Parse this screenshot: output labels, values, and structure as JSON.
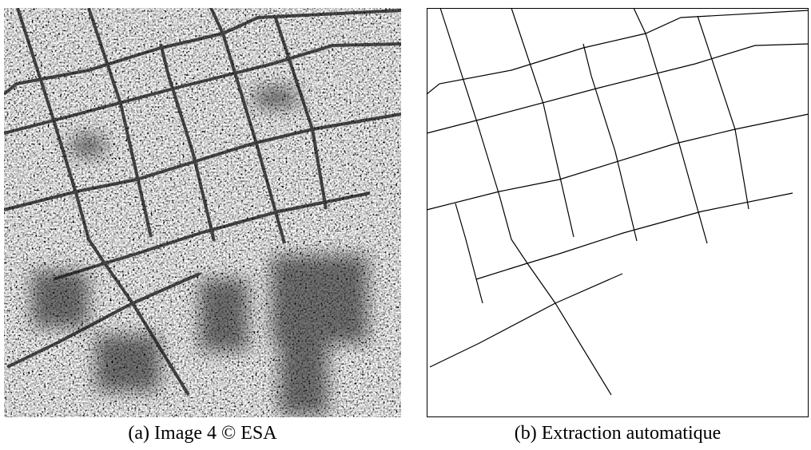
{
  "figure": {
    "panels": [
      {
        "caption": "(a) Image 4 © ESA"
      },
      {
        "caption": "(b) Extraction automatique"
      }
    ]
  }
}
